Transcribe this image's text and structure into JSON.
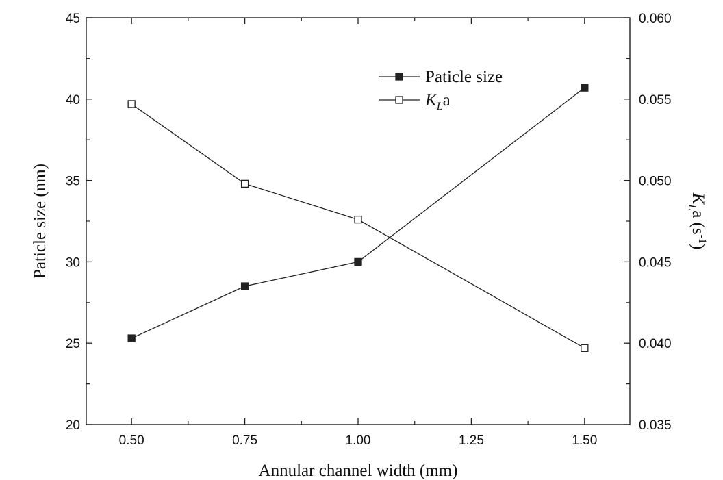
{
  "chart_data": {
    "type": "line",
    "title": "",
    "xlabel": "Annular channel width (mm)",
    "ylabel_left": "Paticle size (nm)",
    "ylabel_right": {
      "base": "K",
      "sub": "L",
      "mid": "a (s",
      "sup": "-1",
      "end": ")"
    },
    "x": [
      0.5,
      0.75,
      1.0,
      1.5
    ],
    "x_ticks": [
      0.5,
      0.75,
      1.0,
      1.25,
      1.5
    ],
    "x_tick_labels": [
      "0.50",
      "0.75",
      "1.00",
      "1.25",
      "1.50"
    ],
    "xlim": [
      0.4,
      1.6
    ],
    "ylim_left": [
      20,
      45
    ],
    "y_ticks_left": [
      20,
      25,
      30,
      35,
      40,
      45
    ],
    "y_tick_labels_left": [
      "20",
      "25",
      "30",
      "35",
      "40",
      "45"
    ],
    "ylim_right": [
      0.035,
      0.06
    ],
    "y_ticks_right": [
      0.035,
      0.04,
      0.045,
      0.05,
      0.055,
      0.06
    ],
    "y_tick_labels_right": [
      "0.035",
      "0.040",
      "0.045",
      "0.050",
      "0.055",
      "0.060"
    ],
    "grid": false,
    "legend_placement": "top-right",
    "series": [
      {
        "name": "Paticle size",
        "axis": "left",
        "marker": "filled-square",
        "values": [
          25.3,
          28.5,
          30.0,
          40.7
        ]
      },
      {
        "name_base": "K",
        "name_sub": "L",
        "name_end": "a",
        "axis": "right",
        "marker": "open-square",
        "values": [
          0.0547,
          0.0498,
          0.0476,
          0.0397
        ]
      }
    ]
  }
}
